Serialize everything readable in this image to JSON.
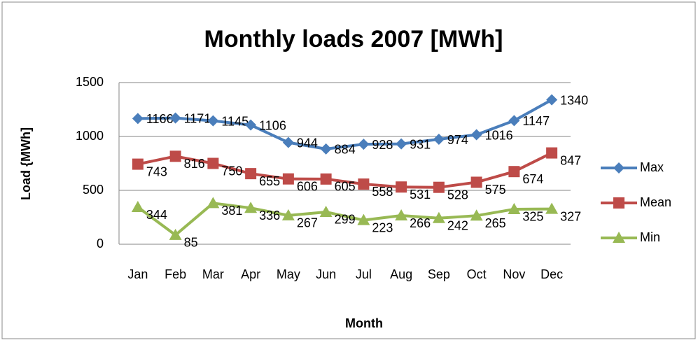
{
  "chart_data": {
    "type": "line",
    "title": "Monthly loads 2007 [MWh]",
    "x_label": "Month",
    "y_label": "Load {MWh]",
    "categories": [
      "Jan",
      "Feb",
      "Mar",
      "Apr",
      "May",
      "Jun",
      "Jul",
      "Aug",
      "Sep",
      "Oct",
      "Nov",
      "Dec"
    ],
    "series": [
      {
        "name": "Max",
        "color": "#4a7ebb",
        "marker": "diamond",
        "values": [
          1166,
          1171,
          1145,
          1106,
          944,
          884,
          928,
          931,
          974,
          1016,
          1147,
          1340
        ]
      },
      {
        "name": "Mean",
        "color": "#be4b48",
        "marker": "square",
        "values": [
          743,
          816,
          750,
          655,
          606,
          605,
          558,
          531,
          528,
          575,
          674,
          847
        ]
      },
      {
        "name": "Min",
        "color": "#98b954",
        "marker": "triangle",
        "values": [
          344,
          85,
          381,
          336,
          267,
          299,
          223,
          266,
          242,
          265,
          325,
          327
        ]
      }
    ],
    "ylim": [
      0,
      1500
    ],
    "yticks": [
      0,
      500,
      1000,
      1500
    ],
    "grid": true,
    "legend": "right"
  }
}
